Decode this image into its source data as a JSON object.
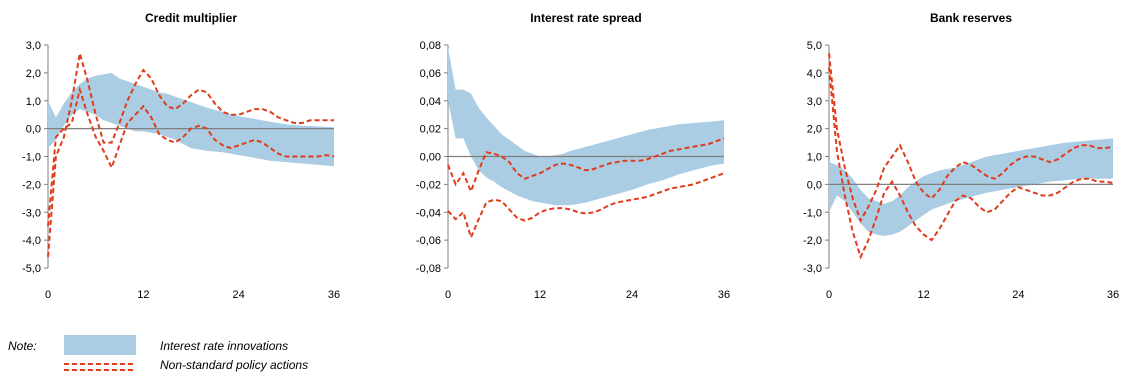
{
  "chart_data": [
    {
      "type": "line",
      "title": "Credit multiplier",
      "xlim": [
        0,
        36
      ],
      "xticks": [
        0,
        12,
        24,
        36
      ],
      "ylim": [
        -5,
        3
      ],
      "yticks": [
        "-5,0",
        "-4,0",
        "-3,0",
        "-2,0",
        "-1,0",
        "0,0",
        "1,0",
        "2,0",
        "3,0"
      ],
      "band": {
        "name": "Interest rate innovations",
        "x": [
          0,
          1,
          2,
          3,
          4,
          5,
          6,
          7,
          8,
          9,
          10,
          11,
          12,
          13,
          14,
          15,
          16,
          17,
          18,
          19,
          20,
          22,
          24,
          26,
          28,
          30,
          32,
          34,
          36
        ],
        "upper": [
          1.0,
          0.4,
          0.9,
          1.3,
          1.6,
          1.8,
          1.9,
          1.95,
          2.0,
          1.8,
          1.7,
          1.6,
          1.5,
          1.4,
          1.3,
          1.25,
          1.15,
          1.05,
          0.95,
          0.85,
          0.75,
          0.6,
          0.45,
          0.35,
          0.25,
          0.15,
          0.1,
          0.08,
          0.05
        ],
        "lower": [
          -0.7,
          -0.4,
          0.1,
          0.5,
          0.7,
          0.6,
          0.5,
          0.3,
          0.2,
          0.1,
          0.0,
          -0.1,
          -0.1,
          -0.15,
          -0.2,
          -0.3,
          -0.4,
          -0.55,
          -0.7,
          -0.75,
          -0.8,
          -0.85,
          -0.95,
          -1.05,
          -1.15,
          -1.2,
          -1.25,
          -1.3,
          -1.35
        ]
      },
      "series": [
        {
          "name": "Non-standard policy actions",
          "x": [
            0,
            1,
            2,
            3,
            4,
            5,
            6,
            7,
            8,
            9,
            10,
            11,
            12,
            13,
            14,
            15,
            16,
            17,
            18,
            19,
            20,
            21,
            22,
            23,
            24,
            25,
            26,
            27,
            28,
            29,
            30,
            31,
            32,
            33,
            34,
            35,
            36
          ],
          "values": [
            -4.6,
            -1.0,
            -0.3,
            1.0,
            2.7,
            1.7,
            0.5,
            -0.5,
            -0.5,
            0.2,
            1.0,
            1.6,
            2.1,
            1.8,
            1.2,
            0.8,
            0.7,
            0.9,
            1.2,
            1.4,
            1.3,
            0.9,
            0.6,
            0.5,
            0.5,
            0.6,
            0.7,
            0.7,
            0.6,
            0.4,
            0.3,
            0.2,
            0.2,
            0.3,
            0.3,
            0.3,
            0.3
          ]
        },
        {
          "name": "Non-standard policy actions",
          "x": [
            0,
            1,
            2,
            3,
            4,
            5,
            6,
            7,
            8,
            9,
            10,
            11,
            12,
            13,
            14,
            15,
            16,
            17,
            18,
            19,
            20,
            21,
            22,
            23,
            24,
            25,
            26,
            27,
            28,
            29,
            30,
            31,
            32,
            33,
            34,
            35,
            36
          ],
          "values": [
            -3.5,
            -0.3,
            0.0,
            0.2,
            1.4,
            0.5,
            -0.3,
            -0.8,
            -1.4,
            -0.6,
            0.2,
            0.5,
            0.8,
            0.4,
            -0.2,
            -0.4,
            -0.5,
            -0.3,
            0.0,
            0.1,
            0.0,
            -0.4,
            -0.6,
            -0.7,
            -0.6,
            -0.5,
            -0.4,
            -0.5,
            -0.7,
            -0.9,
            -1.0,
            -1.0,
            -1.0,
            -1.0,
            -1.0,
            -0.95,
            -1.0
          ]
        }
      ]
    },
    {
      "type": "line",
      "title": "Interest rate spread",
      "xlim": [
        0,
        36
      ],
      "xticks": [
        0,
        12,
        24,
        36
      ],
      "ylim": [
        -0.08,
        0.08
      ],
      "yticks": [
        "-0,08",
        "-0,06",
        "-0,04",
        "-0,02",
        "0,00",
        "0,02",
        "0,04",
        "0,06",
        "0,08"
      ],
      "band": {
        "name": "Interest rate innovations",
        "x": [
          0,
          1,
          2,
          3,
          4,
          5,
          6,
          7,
          8,
          9,
          10,
          11,
          12,
          13,
          14,
          15,
          16,
          18,
          20,
          22,
          24,
          26,
          28,
          30,
          32,
          34,
          36
        ],
        "upper": [
          0.078,
          0.048,
          0.048,
          0.045,
          0.035,
          0.028,
          0.022,
          0.016,
          0.012,
          0.008,
          0.004,
          0.002,
          0.0,
          0.0,
          0.001,
          0.002,
          0.004,
          0.007,
          0.01,
          0.013,
          0.016,
          0.019,
          0.021,
          0.023,
          0.024,
          0.025,
          0.026
        ],
        "lower": [
          0.04,
          0.013,
          0.013,
          0.0,
          -0.01,
          -0.015,
          -0.018,
          -0.022,
          -0.025,
          -0.028,
          -0.03,
          -0.032,
          -0.033,
          -0.034,
          -0.035,
          -0.035,
          -0.035,
          -0.033,
          -0.03,
          -0.027,
          -0.024,
          -0.02,
          -0.017,
          -0.013,
          -0.01,
          -0.007,
          -0.005
        ]
      },
      "series": [
        {
          "name": "Non-standard policy actions",
          "x": [
            0,
            1,
            2,
            3,
            4,
            5,
            6,
            7,
            8,
            9,
            10,
            11,
            12,
            13,
            14,
            15,
            16,
            17,
            18,
            19,
            20,
            21,
            22,
            23,
            24,
            25,
            26,
            27,
            28,
            29,
            30,
            31,
            32,
            33,
            34,
            35,
            36
          ],
          "values": [
            -0.006,
            -0.02,
            -0.012,
            -0.025,
            -0.01,
            0.003,
            0.002,
            0.0,
            -0.004,
            -0.012,
            -0.016,
            -0.014,
            -0.012,
            -0.009,
            -0.006,
            -0.005,
            -0.006,
            -0.008,
            -0.01,
            -0.009,
            -0.007,
            -0.005,
            -0.004,
            -0.003,
            -0.003,
            -0.003,
            -0.002,
            0.0,
            0.002,
            0.004,
            0.005,
            0.006,
            0.007,
            0.008,
            0.009,
            0.011,
            0.013
          ]
        },
        {
          "name": "Non-standard policy actions",
          "x": [
            0,
            1,
            2,
            3,
            4,
            5,
            6,
            7,
            8,
            9,
            10,
            11,
            12,
            13,
            14,
            15,
            16,
            17,
            18,
            19,
            20,
            21,
            22,
            23,
            24,
            25,
            26,
            27,
            28,
            29,
            30,
            31,
            32,
            33,
            34,
            35,
            36
          ],
          "values": [
            -0.039,
            -0.045,
            -0.04,
            -0.058,
            -0.045,
            -0.033,
            -0.031,
            -0.032,
            -0.038,
            -0.044,
            -0.046,
            -0.044,
            -0.04,
            -0.038,
            -0.037,
            -0.037,
            -0.038,
            -0.04,
            -0.041,
            -0.04,
            -0.038,
            -0.035,
            -0.033,
            -0.032,
            -0.031,
            -0.03,
            -0.029,
            -0.027,
            -0.025,
            -0.023,
            -0.022,
            -0.021,
            -0.02,
            -0.018,
            -0.016,
            -0.014,
            -0.012
          ]
        }
      ]
    },
    {
      "type": "line",
      "title": "Bank reserves",
      "xlim": [
        0,
        36
      ],
      "xticks": [
        0,
        12,
        24,
        36
      ],
      "ylim": [
        -3,
        5
      ],
      "yticks": [
        "-3,0",
        "-2,0",
        "-1,0",
        "0,0",
        "1,0",
        "2,0",
        "3,0",
        "4,0",
        "5,0"
      ],
      "band": {
        "name": "Interest rate innovations",
        "x": [
          0,
          1,
          2,
          3,
          4,
          5,
          6,
          7,
          8,
          9,
          10,
          11,
          12,
          13,
          14,
          15,
          16,
          18,
          20,
          22,
          24,
          26,
          28,
          30,
          32,
          34,
          36
        ],
        "upper": [
          0.8,
          0.7,
          0.5,
          0.2,
          -0.2,
          -0.5,
          -0.6,
          -0.7,
          -0.6,
          -0.4,
          -0.1,
          0.1,
          0.3,
          0.4,
          0.5,
          0.55,
          0.6,
          0.8,
          1.0,
          1.1,
          1.2,
          1.3,
          1.4,
          1.5,
          1.55,
          1.6,
          1.65
        ],
        "lower": [
          -1.0,
          -0.4,
          -0.6,
          -1.0,
          -1.4,
          -1.7,
          -1.8,
          -1.85,
          -1.8,
          -1.7,
          -1.5,
          -1.3,
          -1.1,
          -0.9,
          -0.8,
          -0.7,
          -0.6,
          -0.45,
          -0.3,
          -0.2,
          -0.1,
          0.0,
          0.1,
          0.15,
          0.2,
          0.2,
          0.2
        ]
      },
      "series": [
        {
          "name": "Non-standard policy actions",
          "x": [
            0,
            1,
            2,
            3,
            4,
            5,
            6,
            7,
            8,
            9,
            10,
            11,
            12,
            13,
            14,
            15,
            16,
            17,
            18,
            19,
            20,
            21,
            22,
            23,
            24,
            25,
            26,
            27,
            28,
            29,
            30,
            31,
            32,
            33,
            34,
            35,
            36
          ],
          "values": [
            4.7,
            2.0,
            0.6,
            -0.5,
            -1.3,
            -0.8,
            -0.2,
            0.6,
            1.0,
            1.4,
            0.8,
            0.1,
            -0.3,
            -0.5,
            -0.2,
            0.3,
            0.6,
            0.8,
            0.7,
            0.5,
            0.3,
            0.2,
            0.4,
            0.7,
            0.9,
            1.0,
            1.0,
            0.9,
            0.8,
            0.9,
            1.1,
            1.3,
            1.4,
            1.4,
            1.3,
            1.3,
            1.35
          ]
        },
        {
          "name": "Non-standard policy actions",
          "x": [
            0,
            1,
            2,
            3,
            4,
            5,
            6,
            7,
            8,
            9,
            10,
            11,
            12,
            13,
            14,
            15,
            16,
            17,
            18,
            19,
            20,
            21,
            22,
            23,
            24,
            25,
            26,
            27,
            28,
            29,
            30,
            31,
            32,
            33,
            34,
            35,
            36
          ],
          "values": [
            4.2,
            1.2,
            -0.4,
            -1.7,
            -2.6,
            -2.0,
            -1.2,
            -0.3,
            0.1,
            -0.4,
            -1.0,
            -1.5,
            -1.8,
            -2.0,
            -1.6,
            -1.1,
            -0.6,
            -0.4,
            -0.5,
            -0.8,
            -1.0,
            -0.9,
            -0.6,
            -0.3,
            -0.1,
            -0.2,
            -0.3,
            -0.4,
            -0.4,
            -0.3,
            -0.1,
            0.1,
            0.2,
            0.2,
            0.1,
            0.1,
            0.05
          ]
        }
      ]
    }
  ],
  "legend": {
    "note_label": "Note:",
    "band_label": "Interest rate innovations",
    "line_label": "Non-standard policy actions",
    "band_color": "#abcde3",
    "line_color": "#e03c1c"
  }
}
